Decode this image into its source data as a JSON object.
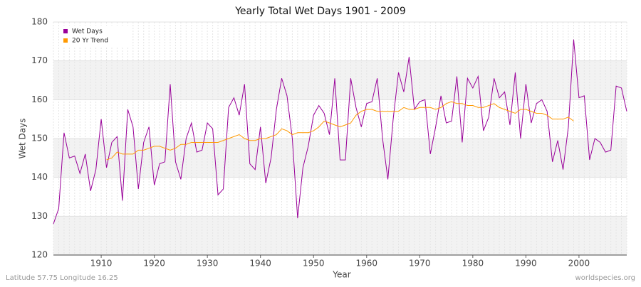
{
  "chart_data": {
    "type": "line",
    "title": "Yearly Total Wet Days 1901 - 2009",
    "x_label": "Year",
    "y_label": "Wet Days",
    "footer_left": "Latitude 57.75 Longitude 16.25",
    "footer_right": "worldspecies.org",
    "x": [
      1901,
      1902,
      1903,
      1904,
      1905,
      1906,
      1907,
      1908,
      1909,
      1910,
      1911,
      1912,
      1913,
      1914,
      1915,
      1916,
      1917,
      1918,
      1919,
      1920,
      1921,
      1922,
      1923,
      1924,
      1925,
      1926,
      1927,
      1928,
      1929,
      1930,
      1931,
      1932,
      1933,
      1934,
      1935,
      1936,
      1937,
      1938,
      1939,
      1940,
      1941,
      1942,
      1943,
      1944,
      1945,
      1946,
      1947,
      1948,
      1949,
      1950,
      1951,
      1952,
      1953,
      1954,
      1955,
      1956,
      1957,
      1958,
      1959,
      1960,
      1961,
      1962,
      1963,
      1964,
      1965,
      1966,
      1967,
      1968,
      1969,
      1970,
      1971,
      1972,
      1973,
      1974,
      1975,
      1976,
      1977,
      1978,
      1979,
      1980,
      1981,
      1982,
      1983,
      1984,
      1985,
      1986,
      1987,
      1988,
      1989,
      1990,
      1991,
      1992,
      1993,
      1994,
      1995,
      1996,
      1997,
      1998,
      1999,
      2000,
      2001,
      2002,
      2003,
      2004,
      2005,
      2006,
      2007,
      2008,
      2009
    ],
    "series": [
      {
        "name": "Wet Days",
        "color": "#990099",
        "values": [
          128,
          132,
          151.5,
          145,
          145.5,
          141,
          146,
          136.5,
          142,
          155,
          142.5,
          149,
          150.5,
          134,
          157.5,
          153,
          137,
          149,
          153,
          138,
          143.5,
          144,
          164,
          144,
          139.5,
          150,
          154,
          146.5,
          147,
          154,
          152.5,
          135.5,
          137,
          158,
          160.5,
          156,
          164,
          143.5,
          142,
          153,
          138.5,
          145,
          157.5,
          165.5,
          161,
          150,
          129.5,
          142.5,
          148,
          156,
          158.5,
          156.5,
          151,
          165.5,
          144.5,
          144.5,
          165.5,
          158,
          153,
          159,
          159.5,
          165.5,
          150,
          139.5,
          155,
          167,
          162,
          171,
          157.5,
          159.5,
          160,
          146,
          153,
          161,
          154,
          154.5,
          166,
          149,
          165.5,
          163,
          166,
          152,
          155.5,
          165.5,
          160.5,
          162,
          153.5,
          167,
          150,
          164,
          154,
          159,
          160,
          157,
          144,
          149.5,
          142,
          153,
          175.5,
          160.5,
          161,
          144.5,
          150,
          149,
          146.5,
          147,
          163.5,
          163,
          157
        ]
      },
      {
        "name": "20 Yr Trend",
        "color": "#ff9900",
        "values": [
          null,
          null,
          null,
          null,
          null,
          null,
          null,
          null,
          null,
          null,
          144.5,
          145,
          146.5,
          146,
          146,
          146,
          147,
          147,
          147.5,
          148,
          148,
          147.5,
          147,
          147.5,
          148.5,
          148.5,
          149,
          149,
          149,
          149,
          149,
          149,
          149.5,
          150,
          150.5,
          151,
          150,
          149.5,
          149.5,
          150,
          150,
          150.5,
          151,
          152.5,
          152,
          151,
          151.5,
          151.5,
          151.5,
          152,
          153,
          154.5,
          154,
          153.5,
          153,
          153.5,
          154,
          156,
          157,
          157.5,
          157.5,
          157,
          157,
          157,
          157,
          157,
          158,
          157.5,
          157.5,
          158,
          158,
          158,
          157.5,
          158,
          159,
          159.5,
          159,
          159,
          158.5,
          158.5,
          158,
          158,
          158.5,
          159,
          158,
          157.5,
          157,
          156.5,
          157.5,
          157.5,
          157,
          156.5,
          156.5,
          156,
          155,
          155,
          155,
          155.5,
          154.5,
          null,
          null,
          null,
          null,
          null,
          null,
          null,
          null,
          null,
          null
        ]
      }
    ],
    "xlim": [
      1901,
      2009
    ],
    "xticks": [
      1910,
      1920,
      1930,
      1940,
      1950,
      1960,
      1970,
      1980,
      1990,
      2000
    ],
    "ylim": [
      120,
      180
    ],
    "yticks": [
      120,
      130,
      140,
      150,
      160,
      170,
      180
    ],
    "grid": true,
    "legend": "top-left"
  }
}
